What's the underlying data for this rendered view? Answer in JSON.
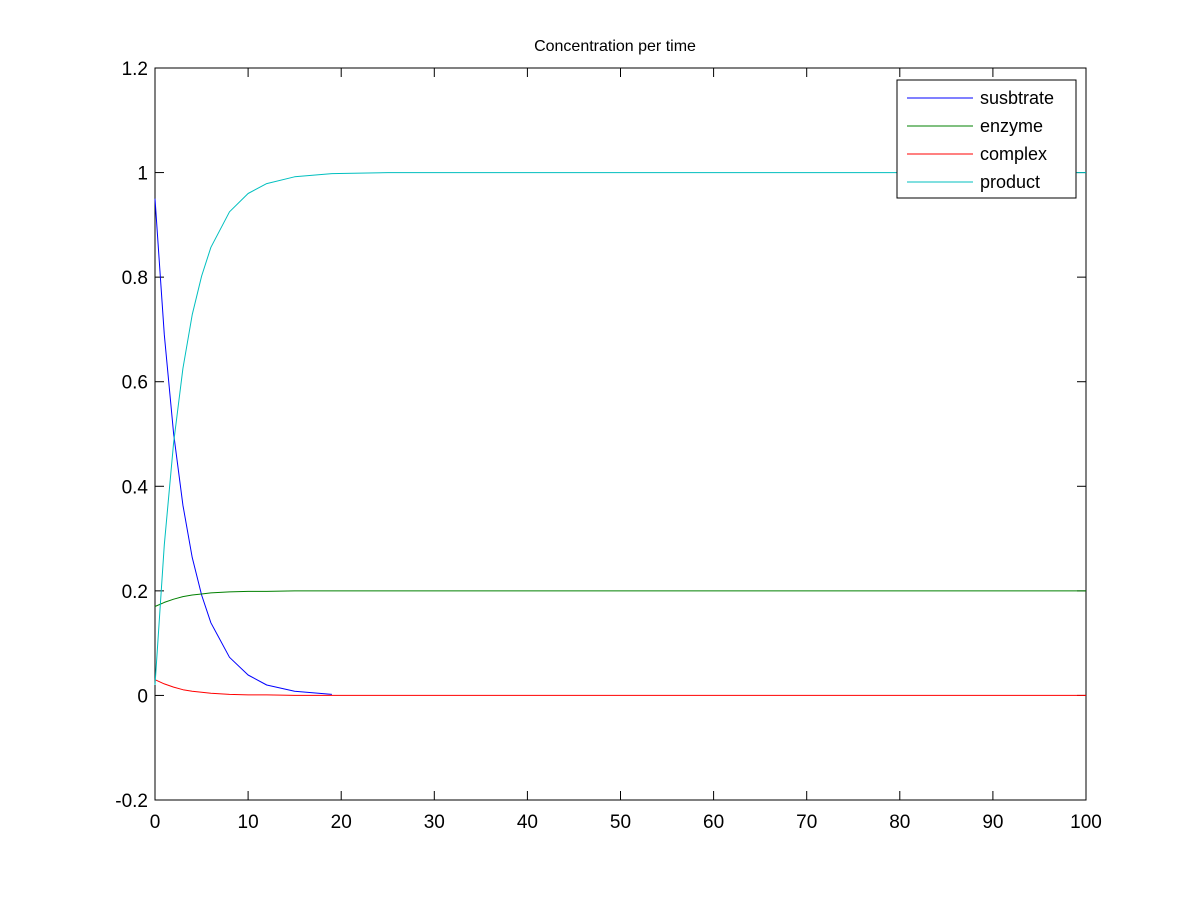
{
  "chart_data": {
    "type": "line",
    "title": "Concentration per time",
    "xlabel": "",
    "ylabel": "",
    "xlim": [
      0,
      100
    ],
    "ylim": [
      -0.2,
      1.2
    ],
    "xticks": [
      0,
      10,
      20,
      30,
      40,
      50,
      60,
      70,
      80,
      90,
      100
    ],
    "xtick_labels": [
      "0",
      "10",
      "20",
      "30",
      "40",
      "50",
      "60",
      "70",
      "80",
      "90",
      "100"
    ],
    "yticks": [
      -0.2,
      0,
      0.2,
      0.4,
      0.6,
      0.8,
      1,
      1.2
    ],
    "ytick_labels": [
      "-0.2",
      "0",
      "0.2",
      "0.4",
      "0.6",
      "0.8",
      "1",
      "1.2"
    ],
    "grid": false,
    "legend_position": "top-right",
    "series": [
      {
        "name": "susbtrate",
        "color": "#0000ff",
        "x": [
          0,
          1,
          2,
          3,
          4,
          5,
          6,
          8,
          10,
          12,
          15,
          19
        ],
        "y": [
          0.95,
          0.69,
          0.501,
          0.364,
          0.264,
          0.192,
          0.139,
          0.073,
          0.039,
          0.02,
          0.008,
          0.002
        ]
      },
      {
        "name": "enzyme",
        "color": "#008000",
        "x": [
          0,
          1,
          2,
          3,
          4,
          5,
          6,
          8,
          10,
          12,
          15,
          20,
          100
        ],
        "y": [
          0.17,
          0.178,
          0.184,
          0.189,
          0.192,
          0.194,
          0.196,
          0.198,
          0.199,
          0.199,
          0.2,
          0.2,
          0.2
        ]
      },
      {
        "name": "complex",
        "color": "#ff0000",
        "x": [
          0,
          1,
          2,
          3,
          4,
          5,
          6,
          8,
          10,
          12,
          15,
          20,
          100
        ],
        "y": [
          0.03,
          0.022,
          0.016,
          0.011,
          0.008,
          0.006,
          0.004,
          0.002,
          0.001,
          0.001,
          0,
          0,
          0
        ]
      },
      {
        "name": "product",
        "color": "#00bfbf",
        "x": [
          0,
          1,
          2,
          3,
          4,
          5,
          6,
          8,
          10,
          12,
          15,
          19,
          25,
          100
        ],
        "y": [
          0.02,
          0.288,
          0.483,
          0.625,
          0.728,
          0.802,
          0.857,
          0.925,
          0.96,
          0.979,
          0.992,
          0.998,
          1,
          1
        ]
      }
    ]
  }
}
